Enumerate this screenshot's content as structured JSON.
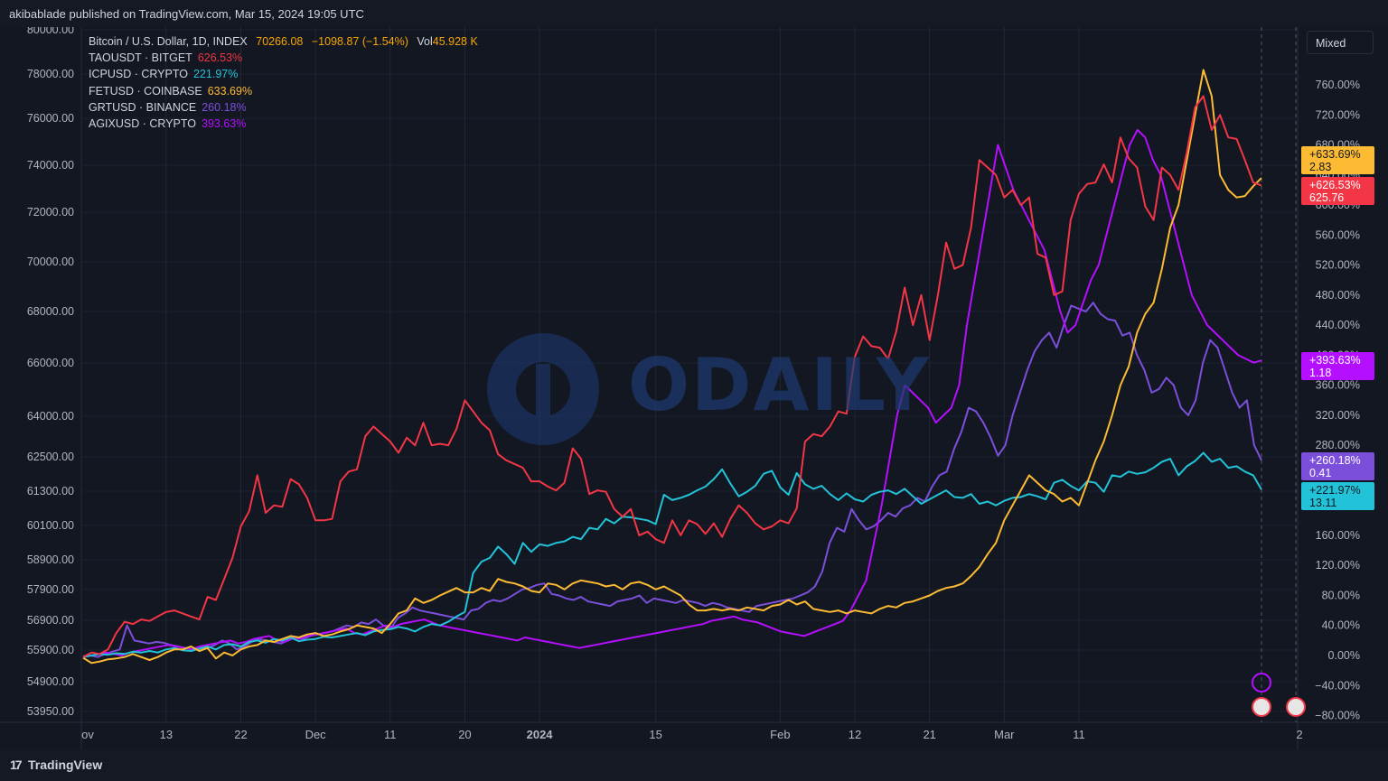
{
  "header": {
    "publisher": "akibablade published on TradingView.com, Mar 15, 2024 19:05 UTC"
  },
  "legend": {
    "main": {
      "symbol": "Bitcoin / U.S. Dollar, 1D, INDEX",
      "price": "70266.08",
      "change": "−1098.87 (−1.54%)",
      "vol_label": "Vol",
      "vol_value": "45.928 K"
    },
    "rows": [
      {
        "symbol": "TAOUSDT · BITGET",
        "value": "626.53%"
      },
      {
        "symbol": "ICPUSD · CRYPTO",
        "value": "221.97%"
      },
      {
        "symbol": "FETUSD · COINBASE",
        "value": "633.69%"
      },
      {
        "symbol": "GRTUSD · BINANCE",
        "value": "260.18%"
      },
      {
        "symbol": "AGIXUSD · CRYPTO",
        "value": "393.63%"
      }
    ]
  },
  "scale_mode_button": "Mixed",
  "watermark": "ODAILY",
  "price_tags": [
    {
      "pct": "+633.69%",
      "price": "2.83"
    },
    {
      "pct": "+626.53%",
      "price": "625.76"
    },
    {
      "pct": "+393.63%",
      "price": "1.18"
    },
    {
      "pct": "+260.18%",
      "price": "0.41"
    },
    {
      "pct": "+221.97%",
      "price": "13.11"
    }
  ],
  "footer": {
    "brand": "TradingView"
  },
  "colors": {
    "TAOUSDT": "#f23645",
    "ICPUSD": "#22c3d8",
    "FETUSD": "#fcbb33",
    "GRTUSD": "#7c4fdb",
    "AGIXUSD": "#b40fff",
    "background": "#131722",
    "grid": "#1f2330"
  },
  "chart_data": {
    "type": "line",
    "left_axis_ticks": [
      "80000.00",
      "78000.00",
      "76000.00",
      "74000.00",
      "72000.00",
      "70000.00",
      "68000.00",
      "66000.00",
      "64000.00",
      "62500.00",
      "61300.00",
      "60100.00",
      "58900.00",
      "57900.00",
      "56900.00",
      "55900.00",
      "54900.00",
      "53950.00"
    ],
    "right_axis_ticks": [
      "760.00%",
      "720.00%",
      "680.00%",
      "640.00%",
      "600.00%",
      "560.00%",
      "520.00%",
      "480.00%",
      "440.00%",
      "400.00%",
      "360.00%",
      "320.00%",
      "280.00%",
      "240.00%",
      "200.00%",
      "160.00%",
      "120.00%",
      "80.00%",
      "40.00%",
      "0.00%",
      "−40.00%",
      "−80.00%"
    ],
    "x_ticks": [
      "ov",
      "13",
      "22",
      "Dec",
      "11",
      "20",
      "2024",
      "15",
      "Feb",
      "12",
      "21",
      "Mar",
      "11",
      "2"
    ],
    "x_tick_index": [
      0,
      10,
      19,
      28,
      37,
      46,
      55,
      69,
      84,
      93,
      102,
      111,
      120,
      130
    ],
    "ylim_pct": [
      -80,
      780
    ],
    "series": [
      {
        "name": "TAOUSDT · BITGET",
        "values": [
          -2,
          4,
          2,
          8,
          30,
          45,
          42,
          48,
          46,
          52,
          58,
          60,
          56,
          52,
          48,
          78,
          74,
          102,
          130,
          172,
          192,
          240,
          190,
          200,
          198,
          235,
          228,
          210,
          180,
          180,
          182,
          232,
          245,
          248,
          292,
          305,
          295,
          285,
          270,
          290,
          280,
          310,
          280,
          282,
          280,
          302,
          340,
          325,
          310,
          300,
          268,
          260,
          255,
          250,
          232,
          232,
          225,
          220,
          230,
          276,
          262,
          215,
          220,
          218,
          195,
          185,
          195,
          160,
          165,
          155,
          150,
          180,
          160,
          180,
          175,
          162,
          176,
          158,
          182,
          200,
          190,
          176,
          168,
          172,
          180,
          176,
          196,
          285,
          295,
          292,
          305,
          325,
          322,
          398,
          425,
          412,
          410,
          395,
          432,
          490,
          440,
          480,
          420,
          480,
          550,
          515,
          520,
          570,
          660,
          650,
          640,
          610,
          620,
          600,
          610,
          535,
          530,
          480,
          485,
          580,
          615,
          628,
          630,
          654,
          630,
          690,
          662,
          650,
          598,
          580,
          650,
          640,
          620,
          670,
          730,
          745,
          700,
          720,
          690,
          688,
          660,
          630,
          626
        ]
      },
      {
        "name": "ICPUSD · CRYPTO",
        "values": [
          -2,
          0,
          2,
          1,
          3,
          2,
          5,
          4,
          6,
          4,
          8,
          10,
          7,
          6,
          9,
          12,
          8,
          14,
          15,
          12,
          18,
          20,
          17,
          22,
          20,
          24,
          19,
          21,
          22,
          25,
          24,
          26,
          28,
          30,
          27,
          32,
          34,
          35,
          38,
          36,
          32,
          38,
          42,
          40,
          45,
          52,
          58,
          110,
          125,
          130,
          145,
          135,
          122,
          150,
          138,
          148,
          146,
          150,
          152,
          158,
          155,
          170,
          168,
          182,
          176,
          185,
          184,
          182,
          180,
          175,
          214,
          207,
          210,
          214,
          220,
          225,
          235,
          248,
          229,
          212,
          218,
          226,
          242,
          246,
          224,
          214,
          243,
          228,
          222,
          226,
          215,
          207,
          216,
          208,
          205,
          214,
          218,
          220,
          215,
          222,
          212,
          202,
          208,
          214,
          220,
          211,
          210,
          215,
          202,
          205,
          200,
          206,
          210,
          211,
          215,
          212,
          208,
          230,
          234,
          226,
          220,
          232,
          230,
          218,
          240,
          238,
          245,
          242,
          244,
          250,
          258,
          262,
          240,
          252,
          259,
          270,
          258,
          262,
          250,
          252,
          245,
          240,
          221
        ]
      },
      {
        "name": "FETUSD · COINBASE",
        "values": [
          -3,
          -10,
          -8,
          -5,
          -4,
          -2,
          2,
          -2,
          -6,
          -2,
          4,
          8,
          8,
          12,
          6,
          10,
          -4,
          4,
          0,
          8,
          12,
          14,
          20,
          18,
          22,
          26,
          24,
          28,
          30,
          26,
          28,
          32,
          35,
          40,
          38,
          36,
          30,
          42,
          56,
          60,
          76,
          70,
          74,
          80,
          85,
          90,
          84,
          84,
          90,
          86,
          102,
          98,
          96,
          92,
          86,
          84,
          96,
          94,
          88,
          96,
          100,
          98,
          96,
          92,
          94,
          88,
          96,
          98,
          94,
          88,
          92,
          86,
          80,
          68,
          60,
          60,
          62,
          60,
          62,
          60,
          64,
          62,
          60,
          66,
          68,
          74,
          68,
          72,
          62,
          60,
          58,
          60,
          56,
          60,
          58,
          56,
          62,
          66,
          64,
          70,
          72,
          76,
          80,
          86,
          90,
          92,
          96,
          106,
          118,
          135,
          150,
          180,
          200,
          220,
          240,
          230,
          220,
          215,
          205,
          210,
          200,
          230,
          260,
          285,
          320,
          360,
          385,
          430,
          455,
          470,
          515,
          570,
          600,
          660,
          720,
          780,
          745,
          640,
          620,
          610,
          612,
          625,
          636
        ]
      },
      {
        "name": "GRTUSD · BINANCE",
        "values": [
          -1,
          0,
          -2,
          2,
          5,
          8,
          40,
          20,
          18,
          16,
          18,
          17,
          14,
          12,
          10,
          8,
          12,
          10,
          14,
          20,
          16,
          8,
          12,
          18,
          22,
          20,
          18,
          16,
          20,
          24,
          22,
          26,
          28,
          30,
          32,
          36,
          40,
          38,
          44,
          42,
          48,
          40,
          36,
          50,
          56,
          64,
          60,
          58,
          56,
          54,
          52,
          50,
          48,
          60,
          62,
          70,
          74,
          72,
          76,
          82,
          88,
          90,
          94,
          96,
          82,
          80,
          76,
          74,
          78,
          72,
          70,
          68,
          66,
          72,
          74,
          76,
          80,
          70,
          76,
          74,
          72,
          70,
          74,
          72,
          70,
          66,
          70,
          68,
          64,
          62,
          60,
          58,
          66,
          68,
          70,
          72,
          74,
          76,
          80,
          84,
          92,
          112,
          150,
          170,
          165,
          195,
          180,
          168,
          172,
          180,
          190,
          185,
          196,
          200,
          210,
          205,
          225,
          240,
          245,
          275,
          298,
          330,
          325,
          310,
          290,
          266,
          280,
          320,
          350,
          380,
          405,
          420,
          430,
          410,
          440,
          466,
          462,
          458,
          470,
          455,
          448,
          446,
          426,
          430,
          400,
          380,
          350,
          355,
          370,
          360,
          330,
          320,
          340,
          390,
          420,
          410,
          380,
          350,
          330,
          340,
          280,
          260
        ]
      },
      {
        "name": "AGIXUSD · CRYPTO",
        "values": [
          -2,
          0,
          2,
          4,
          2,
          0,
          4,
          6,
          8,
          10,
          12,
          14,
          12,
          10,
          8,
          12,
          14,
          16,
          18,
          20,
          16,
          18,
          22,
          24,
          26,
          20,
          18,
          24,
          22,
          26,
          28,
          30,
          32,
          34,
          36,
          30,
          28,
          32,
          36,
          40,
          38,
          42,
          44,
          46,
          48,
          44,
          40,
          38,
          36,
          34,
          32,
          30,
          28,
          26,
          24,
          22,
          20,
          24,
          22,
          20,
          18,
          16,
          14,
          12,
          10,
          12,
          14,
          16,
          18,
          20,
          22,
          24,
          26,
          28,
          30,
          32,
          34,
          36,
          38,
          40,
          42,
          46,
          48,
          50,
          52,
          48,
          46,
          44,
          40,
          36,
          32,
          30,
          28,
          26,
          30,
          34,
          38,
          42,
          46,
          60,
          80,
          100,
          150,
          200,
          260,
          320,
          360,
          350,
          340,
          330,
          310,
          320,
          330,
          360,
          440,
          500,
          560,
          620,
          680,
          650,
          620,
          600,
          580,
          560,
          540,
          500,
          460,
          430,
          440,
          470,
          500,
          520,
          560,
          600,
          640,
          680,
          700,
          690,
          660,
          640,
          600,
          560,
          520,
          480,
          460,
          440,
          430,
          420,
          410,
          400,
          395,
          390,
          393
        ]
      }
    ]
  }
}
